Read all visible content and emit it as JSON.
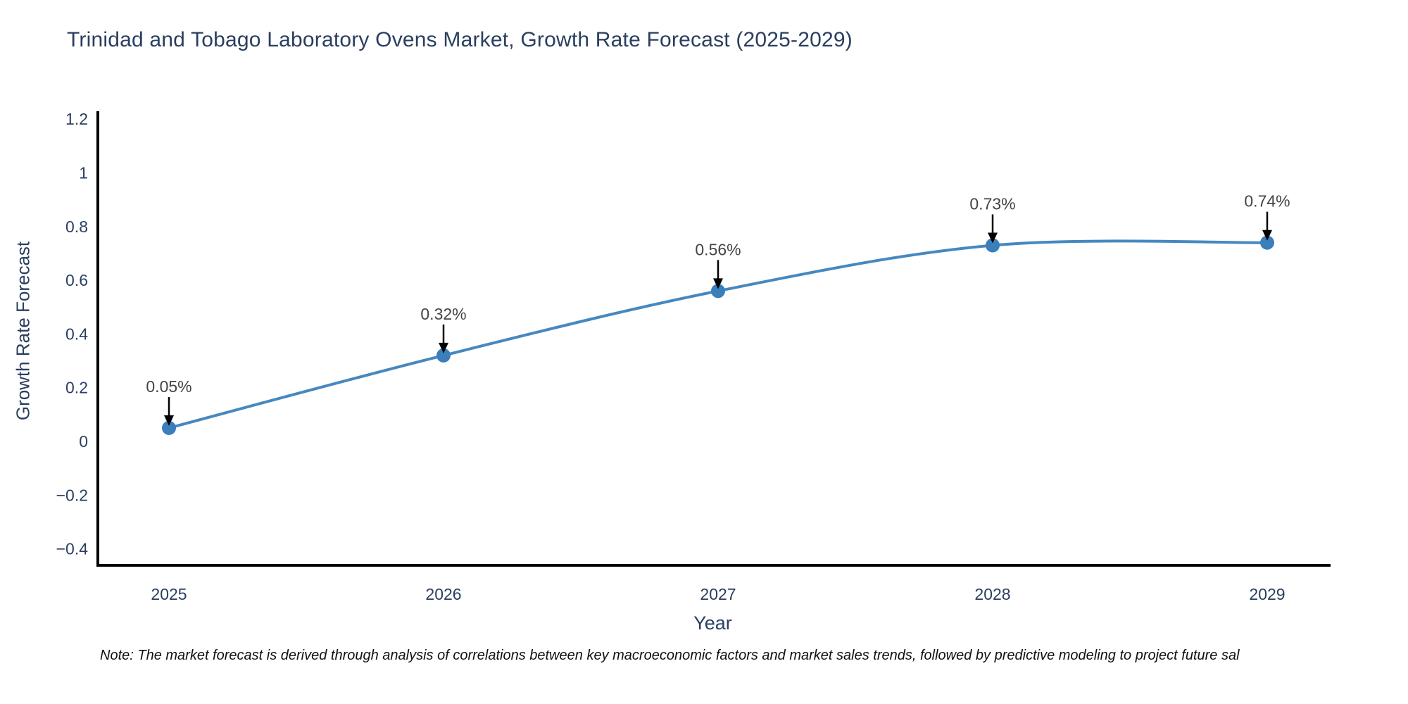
{
  "chart_data": {
    "type": "line",
    "title": "Trinidad and Tobago Laboratory Ovens Market, Growth Rate Forecast (2025-2029)",
    "xlabel": "Year",
    "ylabel": "Growth Rate Forecast",
    "note": "Note: The market forecast is derived through analysis of correlations between key macroeconomic factors and market sales trends, followed by predictive modeling to project future sal",
    "x": [
      2025,
      2026,
      2027,
      2028,
      2029
    ],
    "y": [
      0.05,
      0.32,
      0.56,
      0.73,
      0.74
    ],
    "point_labels": [
      "0.05%",
      "0.32%",
      "0.56%",
      "0.73%",
      "0.74%"
    ],
    "x_tick_labels": [
      "2025",
      "2026",
      "2027",
      "2028",
      "2029"
    ],
    "y_ticks": [
      1.2,
      1.0,
      0.8,
      0.6,
      0.4,
      0.2,
      0.0,
      -0.2,
      -0.4
    ],
    "y_tick_labels": [
      "1.2",
      "1",
      "0.8",
      "0.6",
      "0.4",
      "0.2",
      "0",
      "−0.2",
      "−0.4"
    ],
    "ylim": [
      -0.46,
      1.23
    ],
    "grid": false,
    "legend": "none",
    "line_shape": "spline",
    "annotation_style": "label-above-with-down-arrow",
    "colors": {
      "line": "#4688c0",
      "marker": "#3a7ebb",
      "axis": "#000000",
      "arrow": "#000000",
      "text": "#2a3f5f",
      "annotation_text": "#444444",
      "background": "#ffffff"
    }
  }
}
